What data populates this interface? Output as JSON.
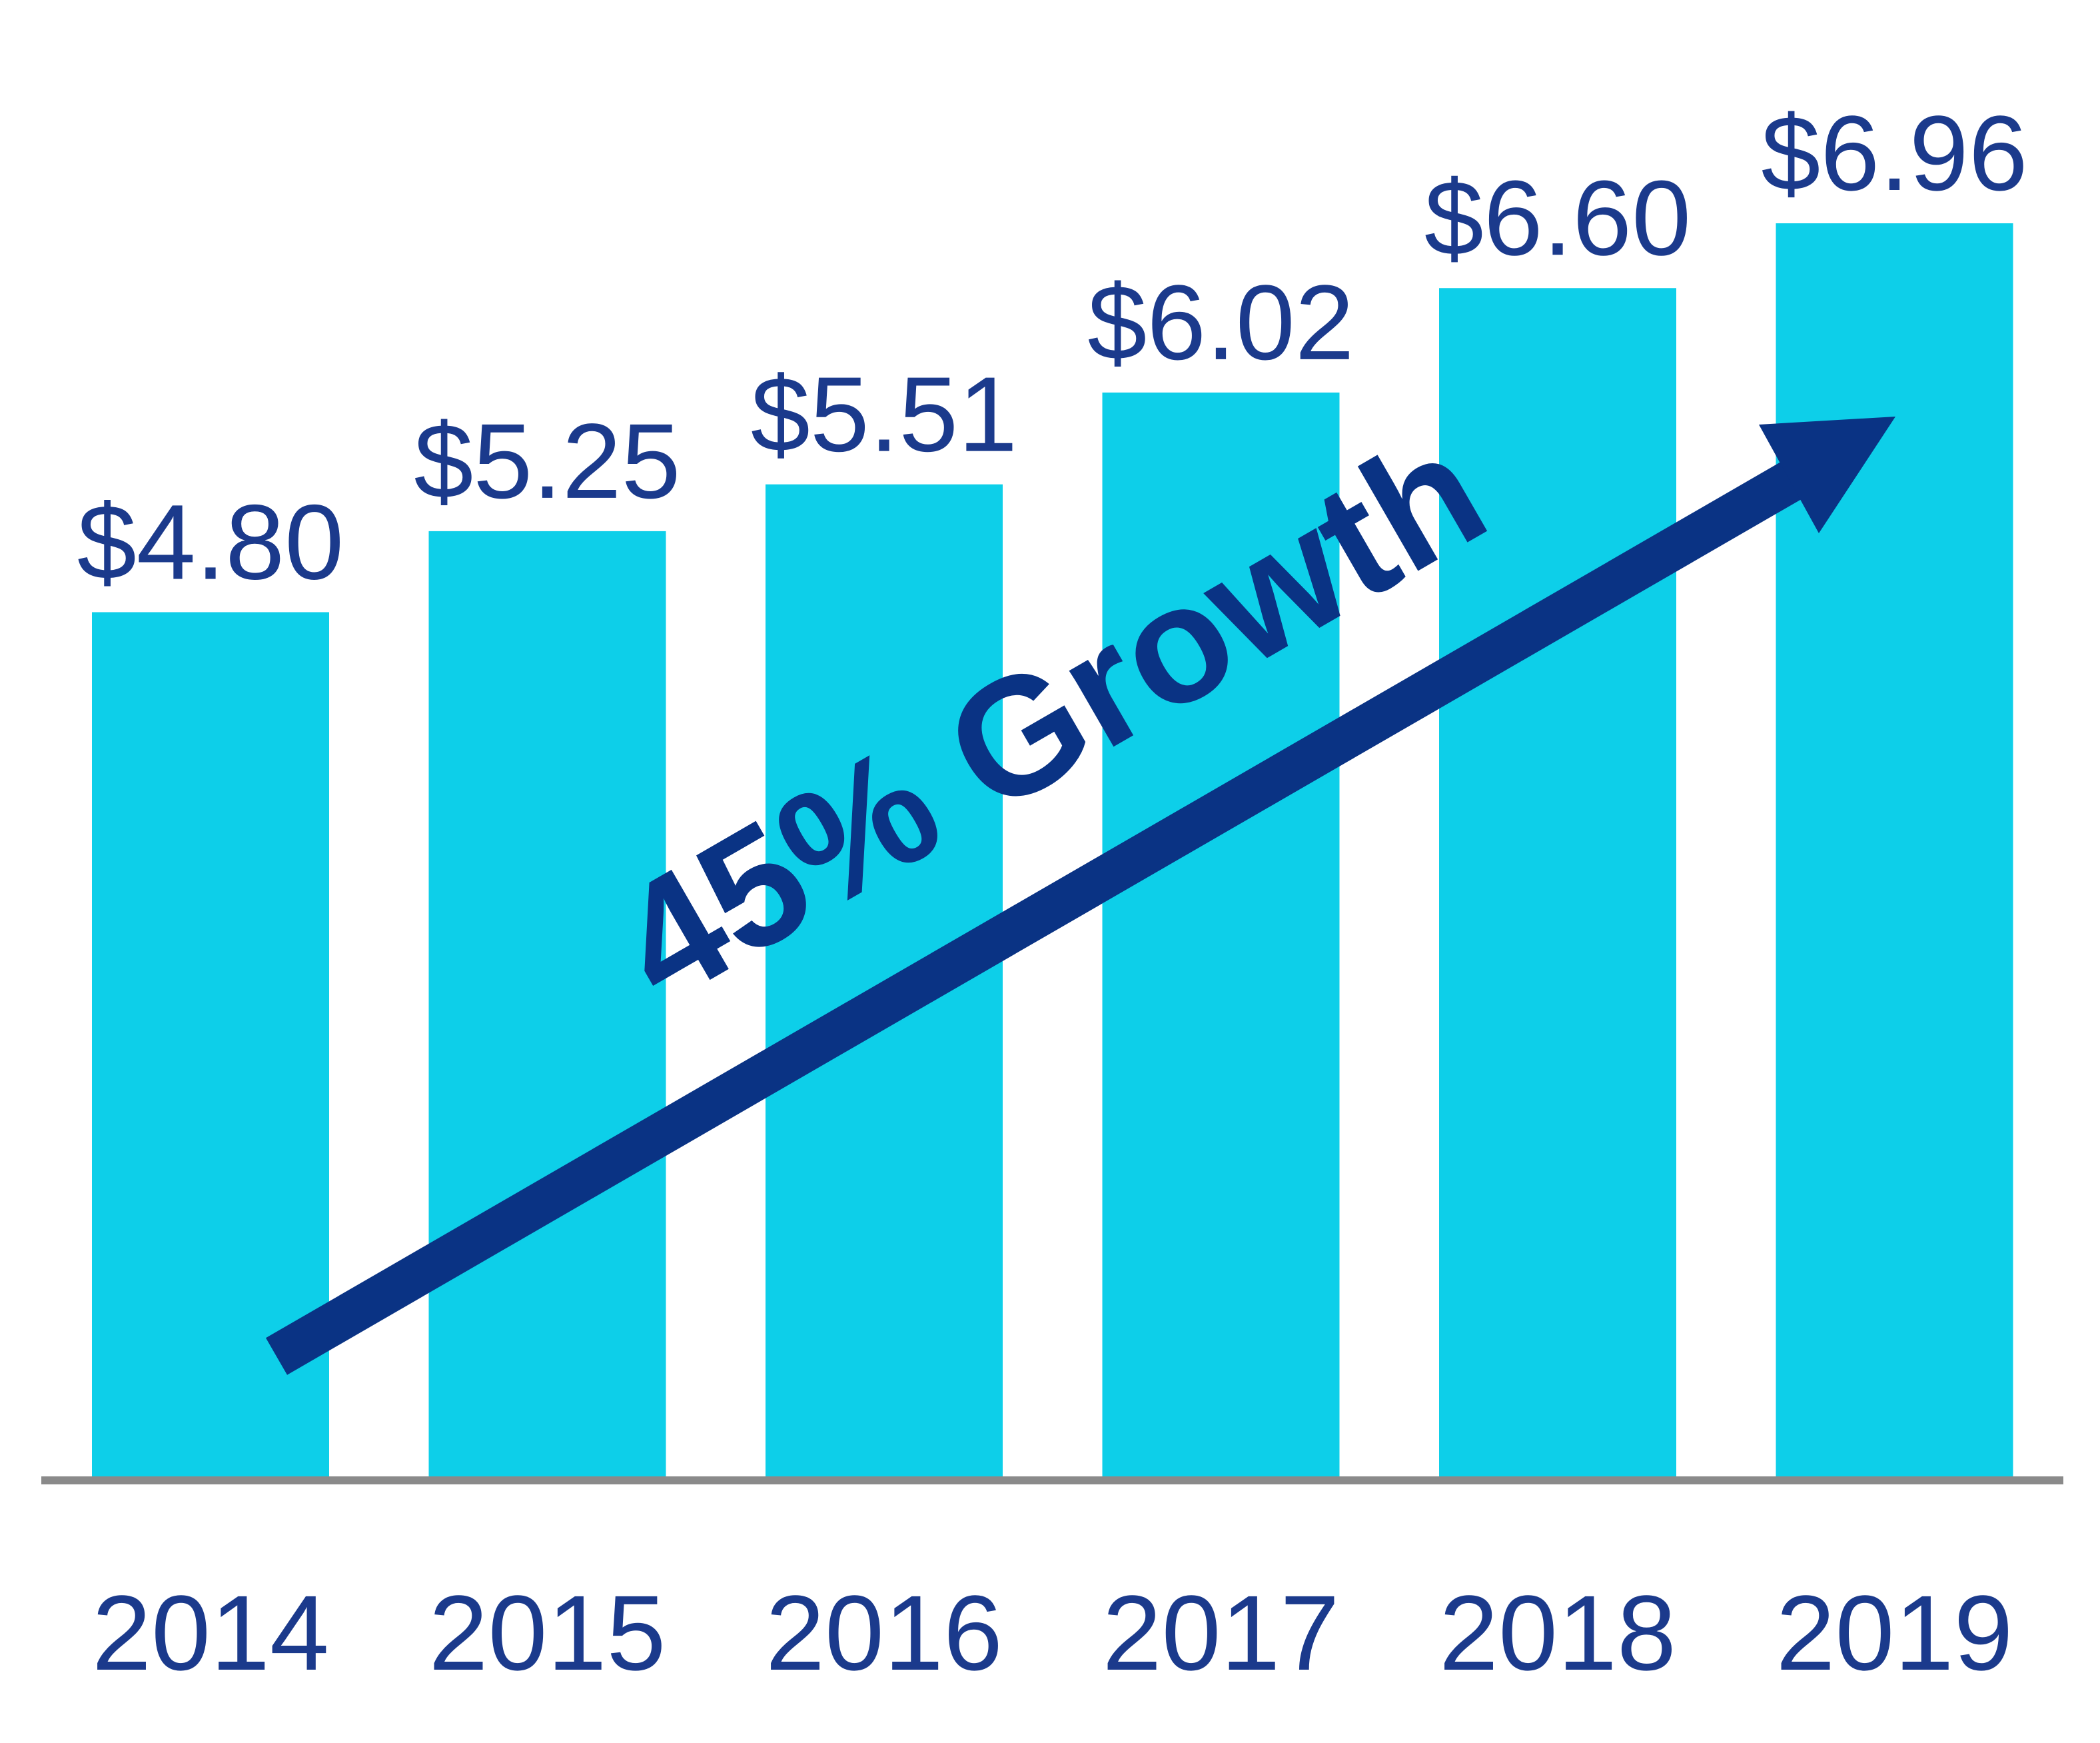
{
  "chart_data": {
    "type": "bar",
    "categories": [
      "2014",
      "2015",
      "2016",
      "2017",
      "2018",
      "2019"
    ],
    "values": [
      4.8,
      5.25,
      5.51,
      6.02,
      6.6,
      6.96
    ],
    "value_labels": [
      "$4.80",
      "$5.25",
      "$5.51",
      "$6.02",
      "$6.60",
      "$6.96"
    ],
    "title": "",
    "xlabel": "",
    "ylabel": "",
    "ylim": [
      0,
      8.2
    ],
    "grid": false,
    "legend": "none",
    "annotation": "45% Growth"
  },
  "colors": {
    "bar": "#0dcfe9",
    "text": "#1b3a8c",
    "arrow": "#0a3384",
    "axis": "#8a8a8a",
    "background": "#ffffff"
  }
}
